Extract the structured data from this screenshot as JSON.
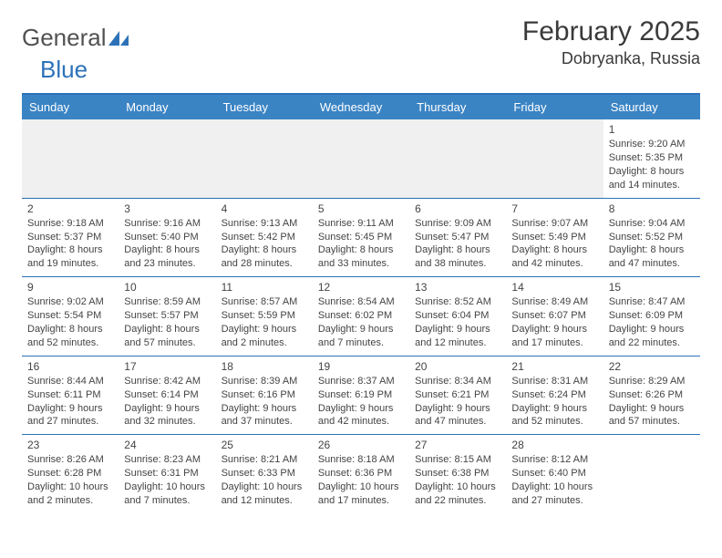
{
  "logo": {
    "text1": "General",
    "text2": "Blue"
  },
  "title": "February 2025",
  "location": "Dobryanka, Russia",
  "header_color": "#3b84c4",
  "border_color": "#2d72b8",
  "weekdays": [
    "Sunday",
    "Monday",
    "Tuesday",
    "Wednesday",
    "Thursday",
    "Friday",
    "Saturday"
  ],
  "weeks": [
    [
      null,
      null,
      null,
      null,
      null,
      null,
      {
        "n": "1",
        "sr": "9:20 AM",
        "ss": "5:35 PM",
        "dl": "8 hours and 14 minutes."
      }
    ],
    [
      {
        "n": "2",
        "sr": "9:18 AM",
        "ss": "5:37 PM",
        "dl": "8 hours and 19 minutes."
      },
      {
        "n": "3",
        "sr": "9:16 AM",
        "ss": "5:40 PM",
        "dl": "8 hours and 23 minutes."
      },
      {
        "n": "4",
        "sr": "9:13 AM",
        "ss": "5:42 PM",
        "dl": "8 hours and 28 minutes."
      },
      {
        "n": "5",
        "sr": "9:11 AM",
        "ss": "5:45 PM",
        "dl": "8 hours and 33 minutes."
      },
      {
        "n": "6",
        "sr": "9:09 AM",
        "ss": "5:47 PM",
        "dl": "8 hours and 38 minutes."
      },
      {
        "n": "7",
        "sr": "9:07 AM",
        "ss": "5:49 PM",
        "dl": "8 hours and 42 minutes."
      },
      {
        "n": "8",
        "sr": "9:04 AM",
        "ss": "5:52 PM",
        "dl": "8 hours and 47 minutes."
      }
    ],
    [
      {
        "n": "9",
        "sr": "9:02 AM",
        "ss": "5:54 PM",
        "dl": "8 hours and 52 minutes."
      },
      {
        "n": "10",
        "sr": "8:59 AM",
        "ss": "5:57 PM",
        "dl": "8 hours and 57 minutes."
      },
      {
        "n": "11",
        "sr": "8:57 AM",
        "ss": "5:59 PM",
        "dl": "9 hours and 2 minutes."
      },
      {
        "n": "12",
        "sr": "8:54 AM",
        "ss": "6:02 PM",
        "dl": "9 hours and 7 minutes."
      },
      {
        "n": "13",
        "sr": "8:52 AM",
        "ss": "6:04 PM",
        "dl": "9 hours and 12 minutes."
      },
      {
        "n": "14",
        "sr": "8:49 AM",
        "ss": "6:07 PM",
        "dl": "9 hours and 17 minutes."
      },
      {
        "n": "15",
        "sr": "8:47 AM",
        "ss": "6:09 PM",
        "dl": "9 hours and 22 minutes."
      }
    ],
    [
      {
        "n": "16",
        "sr": "8:44 AM",
        "ss": "6:11 PM",
        "dl": "9 hours and 27 minutes."
      },
      {
        "n": "17",
        "sr": "8:42 AM",
        "ss": "6:14 PM",
        "dl": "9 hours and 32 minutes."
      },
      {
        "n": "18",
        "sr": "8:39 AM",
        "ss": "6:16 PM",
        "dl": "9 hours and 37 minutes."
      },
      {
        "n": "19",
        "sr": "8:37 AM",
        "ss": "6:19 PM",
        "dl": "9 hours and 42 minutes."
      },
      {
        "n": "20",
        "sr": "8:34 AM",
        "ss": "6:21 PM",
        "dl": "9 hours and 47 minutes."
      },
      {
        "n": "21",
        "sr": "8:31 AM",
        "ss": "6:24 PM",
        "dl": "9 hours and 52 minutes."
      },
      {
        "n": "22",
        "sr": "8:29 AM",
        "ss": "6:26 PM",
        "dl": "9 hours and 57 minutes."
      }
    ],
    [
      {
        "n": "23",
        "sr": "8:26 AM",
        "ss": "6:28 PM",
        "dl": "10 hours and 2 minutes."
      },
      {
        "n": "24",
        "sr": "8:23 AM",
        "ss": "6:31 PM",
        "dl": "10 hours and 7 minutes."
      },
      {
        "n": "25",
        "sr": "8:21 AM",
        "ss": "6:33 PM",
        "dl": "10 hours and 12 minutes."
      },
      {
        "n": "26",
        "sr": "8:18 AM",
        "ss": "6:36 PM",
        "dl": "10 hours and 17 minutes."
      },
      {
        "n": "27",
        "sr": "8:15 AM",
        "ss": "6:38 PM",
        "dl": "10 hours and 22 minutes."
      },
      {
        "n": "28",
        "sr": "8:12 AM",
        "ss": "6:40 PM",
        "dl": "10 hours and 27 minutes."
      },
      null
    ]
  ],
  "labels": {
    "sunrise": "Sunrise: ",
    "sunset": "Sunset: ",
    "daylight": "Daylight: "
  }
}
